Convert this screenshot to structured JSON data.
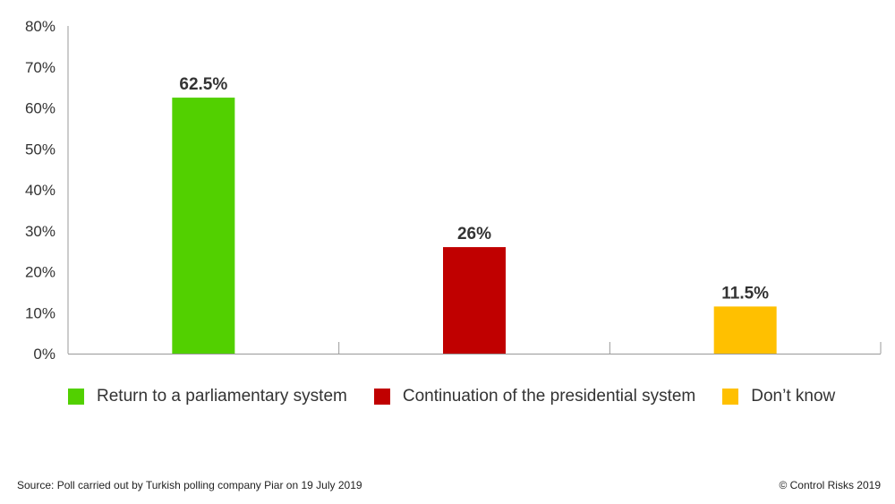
{
  "chart_data": {
    "type": "bar",
    "title": "",
    "xlabel": "",
    "ylabel": "",
    "ylim": [
      0,
      80
    ],
    "yticks": [
      0,
      10,
      20,
      30,
      40,
      50,
      60,
      70,
      80
    ],
    "ytick_suffix": "%",
    "grid": false,
    "legend_position": "bottom",
    "categories": [
      "Return to a parliamentary system",
      "Continuation of the presidential system",
      "Don’t know"
    ],
    "values": [
      62.5,
      26,
      11.5
    ],
    "data_labels": [
      "62.5%",
      "26%",
      "11.5%"
    ],
    "colors": [
      "#52d000",
      "#c00000",
      "#ffc000"
    ]
  },
  "footer": {
    "source": "Source: Poll carried out by Turkish polling company Piar on 19 July 2019",
    "credit": "© Control Risks 2019"
  }
}
